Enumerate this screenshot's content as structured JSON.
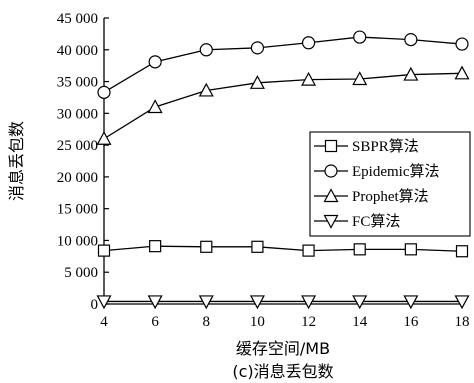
{
  "chart_data": {
    "type": "line",
    "title": "",
    "caption": "(c)消息丢包数",
    "xlabel": "缓存空间/MB",
    "ylabel": "消息丢包数",
    "x": [
      4,
      6,
      8,
      10,
      12,
      14,
      16,
      18
    ],
    "xlim": [
      4,
      18
    ],
    "ylim": [
      0,
      45000
    ],
    "x_ticks": [
      "4",
      "6",
      "8",
      "10",
      "12",
      "14",
      "16",
      "18"
    ],
    "y_ticks": [
      "0",
      "5 000",
      "10 000",
      "15 000",
      "20 000",
      "25 000",
      "30 000",
      "35 000",
      "40 000",
      "45 000"
    ],
    "grid": false,
    "legend_position": "right",
    "series": [
      {
        "name": "SBPR算法",
        "marker": "square",
        "values": [
          8400,
          9100,
          9000,
          9000,
          8400,
          8600,
          8600,
          8300
        ]
      },
      {
        "name": "Epidemic算法",
        "marker": "circle",
        "values": [
          33300,
          38100,
          40000,
          40300,
          41100,
          42000,
          41600,
          40900
        ]
      },
      {
        "name": "Prophet算法",
        "marker": "triangle-up",
        "values": [
          26000,
          31000,
          33600,
          34800,
          35300,
          35400,
          36100,
          36300
        ]
      },
      {
        "name": "FC算法",
        "marker": "triangle-down",
        "values": [
          400,
          400,
          400,
          400,
          400,
          400,
          400,
          400
        ]
      }
    ]
  }
}
